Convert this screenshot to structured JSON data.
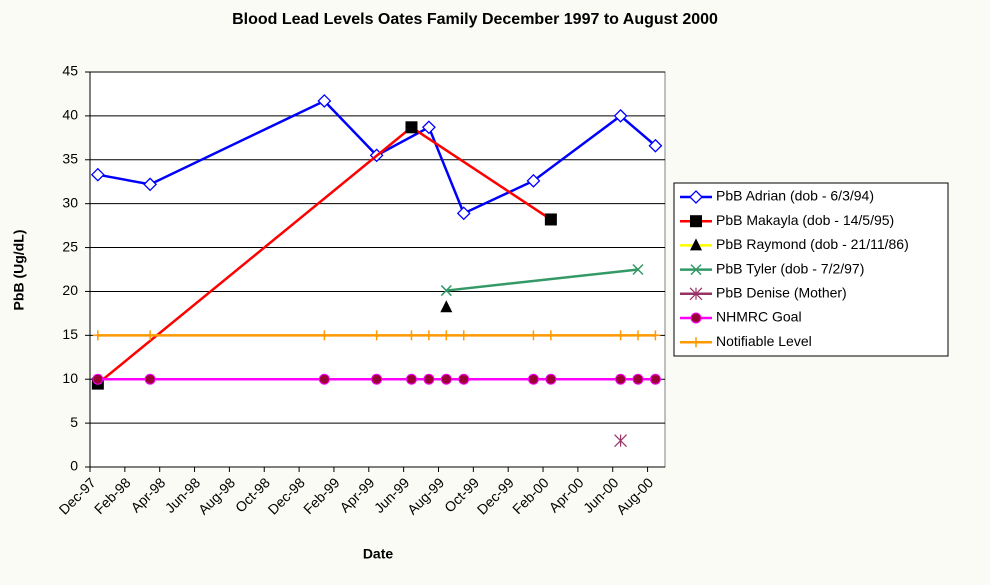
{
  "chart_data": {
    "type": "line",
    "title": "Blood Lead Levels Oates Family December 1997 to August 2000",
    "x_label": "Date",
    "y_label": "PbB (Ug/dL)",
    "xlim": [
      "1997-12",
      "2000-09"
    ],
    "xticks": [
      {
        "value": "1997-12",
        "label": "Dec-97"
      },
      {
        "value": "1998-02",
        "label": "Feb-98"
      },
      {
        "value": "1998-04",
        "label": "Apr-98"
      },
      {
        "value": "1998-06",
        "label": "Jun-98"
      },
      {
        "value": "1998-08",
        "label": "Aug-98"
      },
      {
        "value": "1998-10",
        "label": "Oct-98"
      },
      {
        "value": "1998-12",
        "label": "Dec-98"
      },
      {
        "value": "1999-02",
        "label": "Feb-99"
      },
      {
        "value": "1999-04",
        "label": "Apr-99"
      },
      {
        "value": "1999-06",
        "label": "Jun-99"
      },
      {
        "value": "1999-08",
        "label": "Aug-99"
      },
      {
        "value": "1999-10",
        "label": "Oct-99"
      },
      {
        "value": "1999-12",
        "label": "Dec-99"
      },
      {
        "value": "2000-02",
        "label": "Feb-00"
      },
      {
        "value": "2000-04",
        "label": "Apr-00"
      },
      {
        "value": "2000-06",
        "label": "Jun-00"
      },
      {
        "value": "2000-08",
        "label": "Aug-00"
      }
    ],
    "ylim": [
      0,
      45
    ],
    "yticks": [
      0,
      5,
      10,
      15,
      20,
      25,
      30,
      35,
      40,
      45
    ],
    "grid": true,
    "legend": "right",
    "series": [
      {
        "name": "PbB Adrian (dob - 6/3/94)",
        "color": "#0000ff",
        "marker": "diamond",
        "marker_color": "#0000ff",
        "x": [
          "1997-12",
          "1998-03",
          "1999-01",
          "1999-04",
          "1999-07",
          "1999-09",
          "2000-01",
          "2000-06",
          "2000-08"
        ],
        "values": [
          33.3,
          32.2,
          41.7,
          35.5,
          38.7,
          28.9,
          32.6,
          40,
          36.6
        ]
      },
      {
        "name": "PbB Makayla (dob - 14/5/95)",
        "color": "#ff0000",
        "marker": "square",
        "marker_color": "#000000",
        "x": [
          "1997-12",
          "1999-06",
          "2000-02"
        ],
        "values": [
          9.5,
          38.7,
          28.2
        ]
      },
      {
        "name": "PbB Raymond (dob - 21/11/86)",
        "color": "#ffff00",
        "marker": "triangle",
        "marker_color": "#000000",
        "x": [
          "1999-08"
        ],
        "values": [
          18.2
        ]
      },
      {
        "name": "PbB Tyler (dob - 7/2/97)",
        "color": "#339966",
        "marker": "cross",
        "marker_color": "#339966",
        "x": [
          "1999-08",
          "2000-07"
        ],
        "values": [
          20.1,
          22.5
        ]
      },
      {
        "name": "PbB Denise (Mother)",
        "color": "#993366",
        "marker": "asterisk",
        "marker_color": "#993366",
        "x": [
          "2000-06"
        ],
        "values": [
          3
        ]
      },
      {
        "name": "NHMRC Goal",
        "color": "#ff00ff",
        "marker": "circle",
        "marker_color": "#990033",
        "x": [
          "1997-12",
          "1998-03",
          "1999-01",
          "1999-04",
          "1999-06",
          "1999-07",
          "1999-08",
          "1999-09",
          "2000-01",
          "2000-02",
          "2000-06",
          "2000-07",
          "2000-08"
        ],
        "values": [
          10,
          10,
          10,
          10,
          10,
          10,
          10,
          10,
          10,
          10,
          10,
          10,
          10
        ]
      },
      {
        "name": "Notifiable Level",
        "color": "#ff9900",
        "marker": "plus",
        "marker_color": "#ff9900",
        "x": [
          "1997-12",
          "1998-03",
          "1999-01",
          "1999-04",
          "1999-06",
          "1999-07",
          "1999-08",
          "1999-09",
          "2000-01",
          "2000-02",
          "2000-06",
          "2000-07",
          "2000-08"
        ],
        "values": [
          15,
          15,
          15,
          15,
          15,
          15,
          15,
          15,
          15,
          15,
          15,
          15,
          15
        ]
      }
    ]
  }
}
